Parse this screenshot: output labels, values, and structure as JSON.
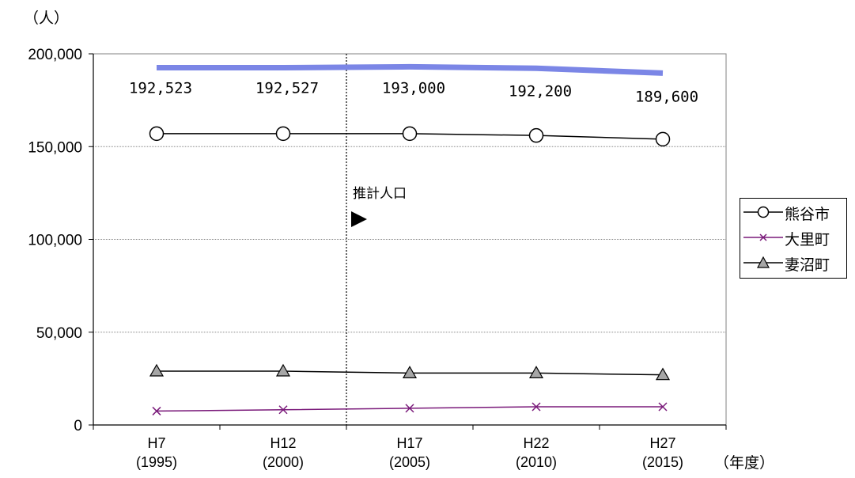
{
  "chart_data": {
    "type": "line",
    "y_unit": "（人）",
    "x_unit": "（年度）",
    "categories": [
      {
        "era": "H7",
        "year": "(1995)"
      },
      {
        "era": "H12",
        "year": "(2000)"
      },
      {
        "era": "H17",
        "year": "(2005)"
      },
      {
        "era": "H22",
        "year": "(2010)"
      },
      {
        "era": "H27",
        "year": "(2015)"
      }
    ],
    "ylim": [
      0,
      200000
    ],
    "yticks": [
      "0",
      "50,000",
      "100,000",
      "150,000",
      "200,000"
    ],
    "ytick_values": [
      0,
      50000,
      100000,
      150000,
      200000
    ],
    "grid": true,
    "legend_position": "right",
    "annotation": "推計人口",
    "total": {
      "values": [
        192523,
        192527,
        193000,
        192200,
        189600
      ],
      "labels": [
        "192,523",
        "192,527",
        "193,000",
        "192,200",
        "189,600"
      ],
      "color": "#7b86e6"
    },
    "series": [
      {
        "name": "熊谷市",
        "values": [
          157000,
          157000,
          157000,
          156000,
          154000
        ],
        "marker": "circle",
        "color": "#000000"
      },
      {
        "name": "大里町",
        "values": [
          7500,
          8200,
          9000,
          9800,
          9800
        ],
        "marker": "x",
        "color": "#7a1a7a"
      },
      {
        "name": "妻沼町",
        "values": [
          29000,
          29000,
          28000,
          28000,
          27000
        ],
        "marker": "triangle",
        "color": "#000000"
      }
    ]
  }
}
